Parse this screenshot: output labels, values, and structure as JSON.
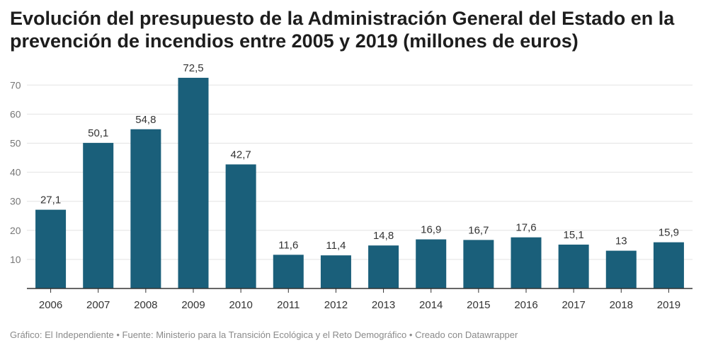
{
  "title": "Evolución del presupuesto de la Administración General del Estado en la prevención de incendios entre 2005 y 2019 (millones de euros)",
  "footer": {
    "graphic": "Gráfico: El Independiente",
    "source": "Fuente: Ministerio para la Transición Ecológica y el Reto Demográfico",
    "created": "Creado con Datawrapper",
    "separator": "•"
  },
  "colors": {
    "bar": "#1a5f7a",
    "grid": "#e3e3e3",
    "axis": "#333333"
  },
  "chart_data": {
    "type": "bar",
    "title": "Evolución del presupuesto de la Administración General del Estado en la prevención de incendios entre 2005 y 2019 (millones de euros)",
    "xlabel": "",
    "ylabel": "",
    "categories": [
      "2006",
      "2007",
      "2008",
      "2009",
      "2010",
      "2011",
      "2012",
      "2013",
      "2014",
      "2015",
      "2016",
      "2017",
      "2018",
      "2019"
    ],
    "values": [
      27.1,
      50.1,
      54.8,
      72.5,
      42.7,
      11.6,
      11.4,
      14.8,
      16.9,
      16.7,
      17.6,
      15.1,
      13,
      15.9
    ],
    "value_labels": [
      "27,1",
      "50,1",
      "54,8",
      "72,5",
      "42,7",
      "11,6",
      "11,4",
      "14,8",
      "16,9",
      "16,7",
      "17,6",
      "15,1",
      "13",
      "15,9"
    ],
    "yticks": [
      10,
      20,
      30,
      40,
      50,
      60,
      70
    ],
    "ylim": [
      0,
      75
    ],
    "grid": true,
    "legend": "none"
  }
}
